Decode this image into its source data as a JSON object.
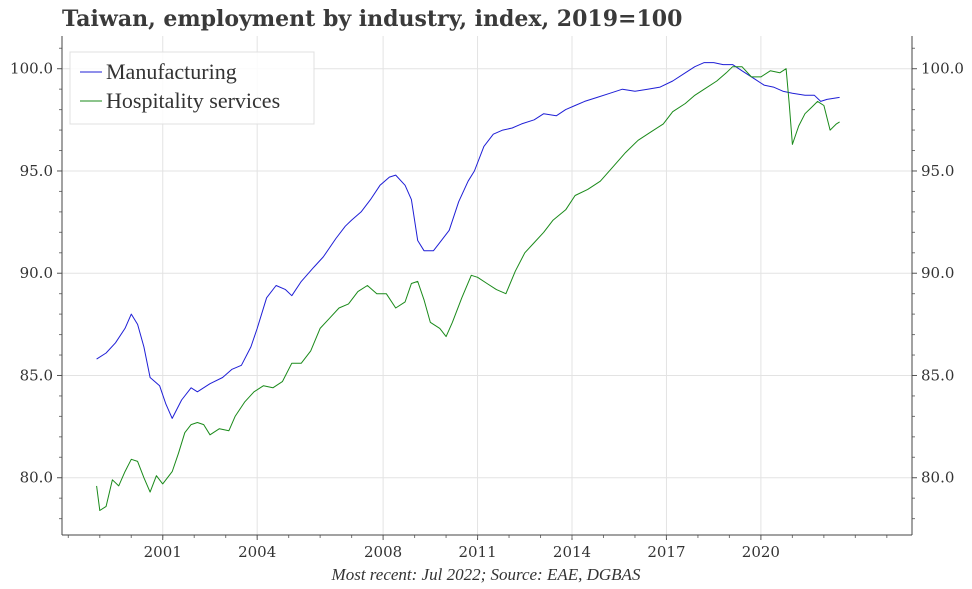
{
  "title": "Taiwan, employment by industry, index, 2019=100",
  "caption": "Most recent: Jul 2022; Source: EAE, DGBAS",
  "chart_data": {
    "type": "line",
    "title": "Taiwan, employment by industry, index, 2019=100",
    "xlabel": "",
    "ylabel": "",
    "xlim": [
      1997.8,
      2024.8
    ],
    "ylim": [
      77.2,
      101.6
    ],
    "x_ticks": [
      "2001",
      "2004",
      "2008",
      "2011",
      "2014",
      "2017",
      "2020"
    ],
    "y_ticks": [
      "80.0",
      "85.0",
      "90.0",
      "95.0",
      "100.0"
    ],
    "grid": true,
    "legend_position": "top-left",
    "colors": {
      "Manufacturing": "#1f1fd6",
      "Hospitality services": "#1a8a1a"
    },
    "series": [
      {
        "name": "Manufacturing",
        "points": [
          [
            1998.9,
            85.8
          ],
          [
            1999.2,
            86.1
          ],
          [
            1999.5,
            86.6
          ],
          [
            1999.8,
            87.3
          ],
          [
            2000.0,
            88.0
          ],
          [
            2000.2,
            87.5
          ],
          [
            2000.4,
            86.4
          ],
          [
            2000.6,
            84.9
          ],
          [
            2000.9,
            84.5
          ],
          [
            2001.1,
            83.6
          ],
          [
            2001.3,
            82.9
          ],
          [
            2001.6,
            83.8
          ],
          [
            2001.9,
            84.4
          ],
          [
            2002.1,
            84.2
          ],
          [
            2002.5,
            84.6
          ],
          [
            2002.9,
            84.9
          ],
          [
            2003.2,
            85.3
          ],
          [
            2003.5,
            85.5
          ],
          [
            2003.8,
            86.4
          ],
          [
            2004.0,
            87.3
          ],
          [
            2004.3,
            88.8
          ],
          [
            2004.6,
            89.4
          ],
          [
            2004.9,
            89.2
          ],
          [
            2005.1,
            88.9
          ],
          [
            2005.4,
            89.6
          ],
          [
            2005.8,
            90.3
          ],
          [
            2006.1,
            90.8
          ],
          [
            2006.5,
            91.7
          ],
          [
            2006.8,
            92.3
          ],
          [
            2007.0,
            92.6
          ],
          [
            2007.3,
            93.0
          ],
          [
            2007.6,
            93.6
          ],
          [
            2007.9,
            94.3
          ],
          [
            2008.2,
            94.7
          ],
          [
            2008.4,
            94.8
          ],
          [
            2008.7,
            94.3
          ],
          [
            2008.9,
            93.6
          ],
          [
            2009.1,
            91.6
          ],
          [
            2009.3,
            91.1
          ],
          [
            2009.6,
            91.1
          ],
          [
            2009.8,
            91.5
          ],
          [
            2010.1,
            92.1
          ],
          [
            2010.4,
            93.5
          ],
          [
            2010.7,
            94.5
          ],
          [
            2010.9,
            95.0
          ],
          [
            2011.2,
            96.2
          ],
          [
            2011.5,
            96.8
          ],
          [
            2011.8,
            97.0
          ],
          [
            2012.1,
            97.1
          ],
          [
            2012.4,
            97.3
          ],
          [
            2012.8,
            97.5
          ],
          [
            2013.1,
            97.8
          ],
          [
            2013.5,
            97.7
          ],
          [
            2013.8,
            98.0
          ],
          [
            2014.1,
            98.2
          ],
          [
            2014.4,
            98.4
          ],
          [
            2014.8,
            98.6
          ],
          [
            2015.2,
            98.8
          ],
          [
            2015.6,
            99.0
          ],
          [
            2016.0,
            98.9
          ],
          [
            2016.4,
            99.0
          ],
          [
            2016.8,
            99.1
          ],
          [
            2017.2,
            99.4
          ],
          [
            2017.6,
            99.8
          ],
          [
            2017.9,
            100.1
          ],
          [
            2018.2,
            100.3
          ],
          [
            2018.5,
            100.3
          ],
          [
            2018.8,
            100.2
          ],
          [
            2019.1,
            100.2
          ],
          [
            2019.4,
            99.9
          ],
          [
            2019.8,
            99.5
          ],
          [
            2020.1,
            99.2
          ],
          [
            2020.4,
            99.1
          ],
          [
            2020.7,
            98.9
          ],
          [
            2021.0,
            98.8
          ],
          [
            2021.4,
            98.7
          ],
          [
            2021.7,
            98.7
          ],
          [
            2021.9,
            98.4
          ],
          [
            2022.1,
            98.5
          ],
          [
            2022.5,
            98.6
          ]
        ]
      },
      {
        "name": "Hospitality services",
        "points": [
          [
            1998.9,
            79.6
          ],
          [
            1999.0,
            78.4
          ],
          [
            1999.2,
            78.6
          ],
          [
            1999.4,
            79.9
          ],
          [
            1999.6,
            79.6
          ],
          [
            1999.8,
            80.3
          ],
          [
            2000.0,
            80.9
          ],
          [
            2000.2,
            80.8
          ],
          [
            2000.4,
            80.0
          ],
          [
            2000.6,
            79.3
          ],
          [
            2000.8,
            80.1
          ],
          [
            2001.0,
            79.7
          ],
          [
            2001.3,
            80.3
          ],
          [
            2001.5,
            81.2
          ],
          [
            2001.7,
            82.2
          ],
          [
            2001.9,
            82.6
          ],
          [
            2002.1,
            82.7
          ],
          [
            2002.3,
            82.6
          ],
          [
            2002.5,
            82.1
          ],
          [
            2002.8,
            82.4
          ],
          [
            2003.1,
            82.3
          ],
          [
            2003.3,
            83.0
          ],
          [
            2003.6,
            83.7
          ],
          [
            2003.9,
            84.2
          ],
          [
            2004.2,
            84.5
          ],
          [
            2004.5,
            84.4
          ],
          [
            2004.8,
            84.7
          ],
          [
            2005.1,
            85.6
          ],
          [
            2005.4,
            85.6
          ],
          [
            2005.7,
            86.2
          ],
          [
            2006.0,
            87.3
          ],
          [
            2006.3,
            87.8
          ],
          [
            2006.6,
            88.3
          ],
          [
            2006.9,
            88.5
          ],
          [
            2007.2,
            89.1
          ],
          [
            2007.5,
            89.4
          ],
          [
            2007.8,
            89.0
          ],
          [
            2008.1,
            89.0
          ],
          [
            2008.4,
            88.3
          ],
          [
            2008.7,
            88.6
          ],
          [
            2008.9,
            89.5
          ],
          [
            2009.1,
            89.6
          ],
          [
            2009.3,
            88.7
          ],
          [
            2009.5,
            87.6
          ],
          [
            2009.8,
            87.3
          ],
          [
            2010.0,
            86.9
          ],
          [
            2010.2,
            87.6
          ],
          [
            2010.5,
            88.8
          ],
          [
            2010.8,
            89.9
          ],
          [
            2011.0,
            89.8
          ],
          [
            2011.3,
            89.5
          ],
          [
            2011.6,
            89.2
          ],
          [
            2011.9,
            89.0
          ],
          [
            2012.2,
            90.1
          ],
          [
            2012.5,
            91.0
          ],
          [
            2012.8,
            91.5
          ],
          [
            2013.1,
            92.0
          ],
          [
            2013.4,
            92.6
          ],
          [
            2013.8,
            93.1
          ],
          [
            2014.1,
            93.8
          ],
          [
            2014.5,
            94.1
          ],
          [
            2014.9,
            94.5
          ],
          [
            2015.3,
            95.2
          ],
          [
            2015.7,
            95.9
          ],
          [
            2016.1,
            96.5
          ],
          [
            2016.5,
            96.9
          ],
          [
            2016.9,
            97.3
          ],
          [
            2017.2,
            97.9
          ],
          [
            2017.6,
            98.3
          ],
          [
            2017.9,
            98.7
          ],
          [
            2018.2,
            99.0
          ],
          [
            2018.6,
            99.4
          ],
          [
            2018.9,
            99.8
          ],
          [
            2019.1,
            100.1
          ],
          [
            2019.4,
            100.1
          ],
          [
            2019.7,
            99.6
          ],
          [
            2020.0,
            99.6
          ],
          [
            2020.3,
            99.9
          ],
          [
            2020.6,
            99.8
          ],
          [
            2020.8,
            100.0
          ],
          [
            2020.9,
            98.3
          ],
          [
            2021.0,
            96.3
          ],
          [
            2021.2,
            97.2
          ],
          [
            2021.4,
            97.8
          ],
          [
            2021.6,
            98.1
          ],
          [
            2021.8,
            98.4
          ],
          [
            2022.0,
            98.2
          ],
          [
            2022.2,
            97.0
          ],
          [
            2022.4,
            97.3
          ],
          [
            2022.5,
            97.4
          ]
        ]
      }
    ]
  }
}
